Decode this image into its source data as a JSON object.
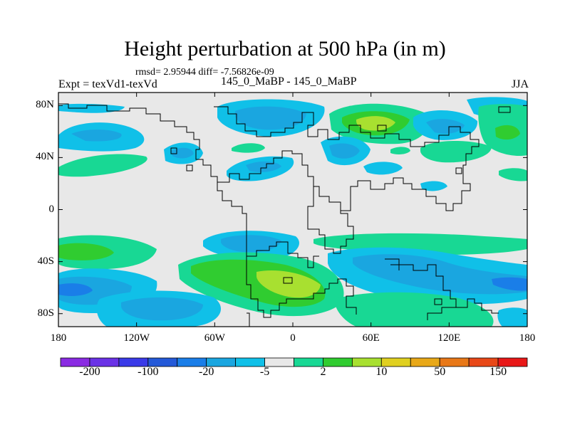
{
  "figure": {
    "title": "Height perturbation at 500 hPa (in m)",
    "subtitle": "rmsd= 2.95944 diff= -7.56826e-09",
    "left_string": "Expt = texVd1-texVd",
    "center_string": "145_0_MaBP - 145_0_MaBP",
    "right_string": "JJA"
  },
  "map": {
    "lat_ticks": [
      {
        "value": 80,
        "label": "80N"
      },
      {
        "value": 40,
        "label": "40N"
      },
      {
        "value": 0,
        "label": "0"
      },
      {
        "value": -40,
        "label": "40S"
      },
      {
        "value": -80,
        "label": "80S"
      }
    ],
    "lon_ticks": [
      {
        "value": -180,
        "label": "180"
      },
      {
        "value": -120,
        "label": "120W"
      },
      {
        "value": -60,
        "label": "60W"
      },
      {
        "value": 0,
        "label": "0"
      },
      {
        "value": 60,
        "label": "60E"
      },
      {
        "value": 120,
        "label": "120E"
      },
      {
        "value": 180,
        "label": "180"
      }
    ],
    "lat_range": [
      -90,
      90
    ],
    "lon_range": [
      -180,
      180
    ],
    "background_color": "#e8e8e8"
  },
  "colorbar": {
    "colors": [
      "#8a2be2",
      "#6a32e6",
      "#3a3ae8",
      "#2459d8",
      "#1a7ee8",
      "#1aa6e0",
      "#10c0e8",
      "#e8e8e8",
      "#18d894",
      "#30cc30",
      "#a8e030",
      "#e0d020",
      "#e8a818",
      "#e87818",
      "#e84818",
      "#e81818"
    ],
    "labels": [
      {
        "value": "-200",
        "index": 1
      },
      {
        "value": "-100",
        "index": 3
      },
      {
        "value": "-20",
        "index": 5
      },
      {
        "value": "-5",
        "index": 7
      },
      {
        "value": "2",
        "index": 9
      },
      {
        "value": "10",
        "index": 11
      },
      {
        "value": "50",
        "index": 13
      },
      {
        "value": "150",
        "index": 15
      }
    ]
  },
  "legend_colors": {
    "weak_neg": "#10c0e8",
    "mid_neg": "#1aa6e0",
    "strong_neg": "#1a7ee8",
    "weak_pos": "#18d894",
    "mid_pos": "#30cc30",
    "strong_pos": "#a8e030"
  }
}
